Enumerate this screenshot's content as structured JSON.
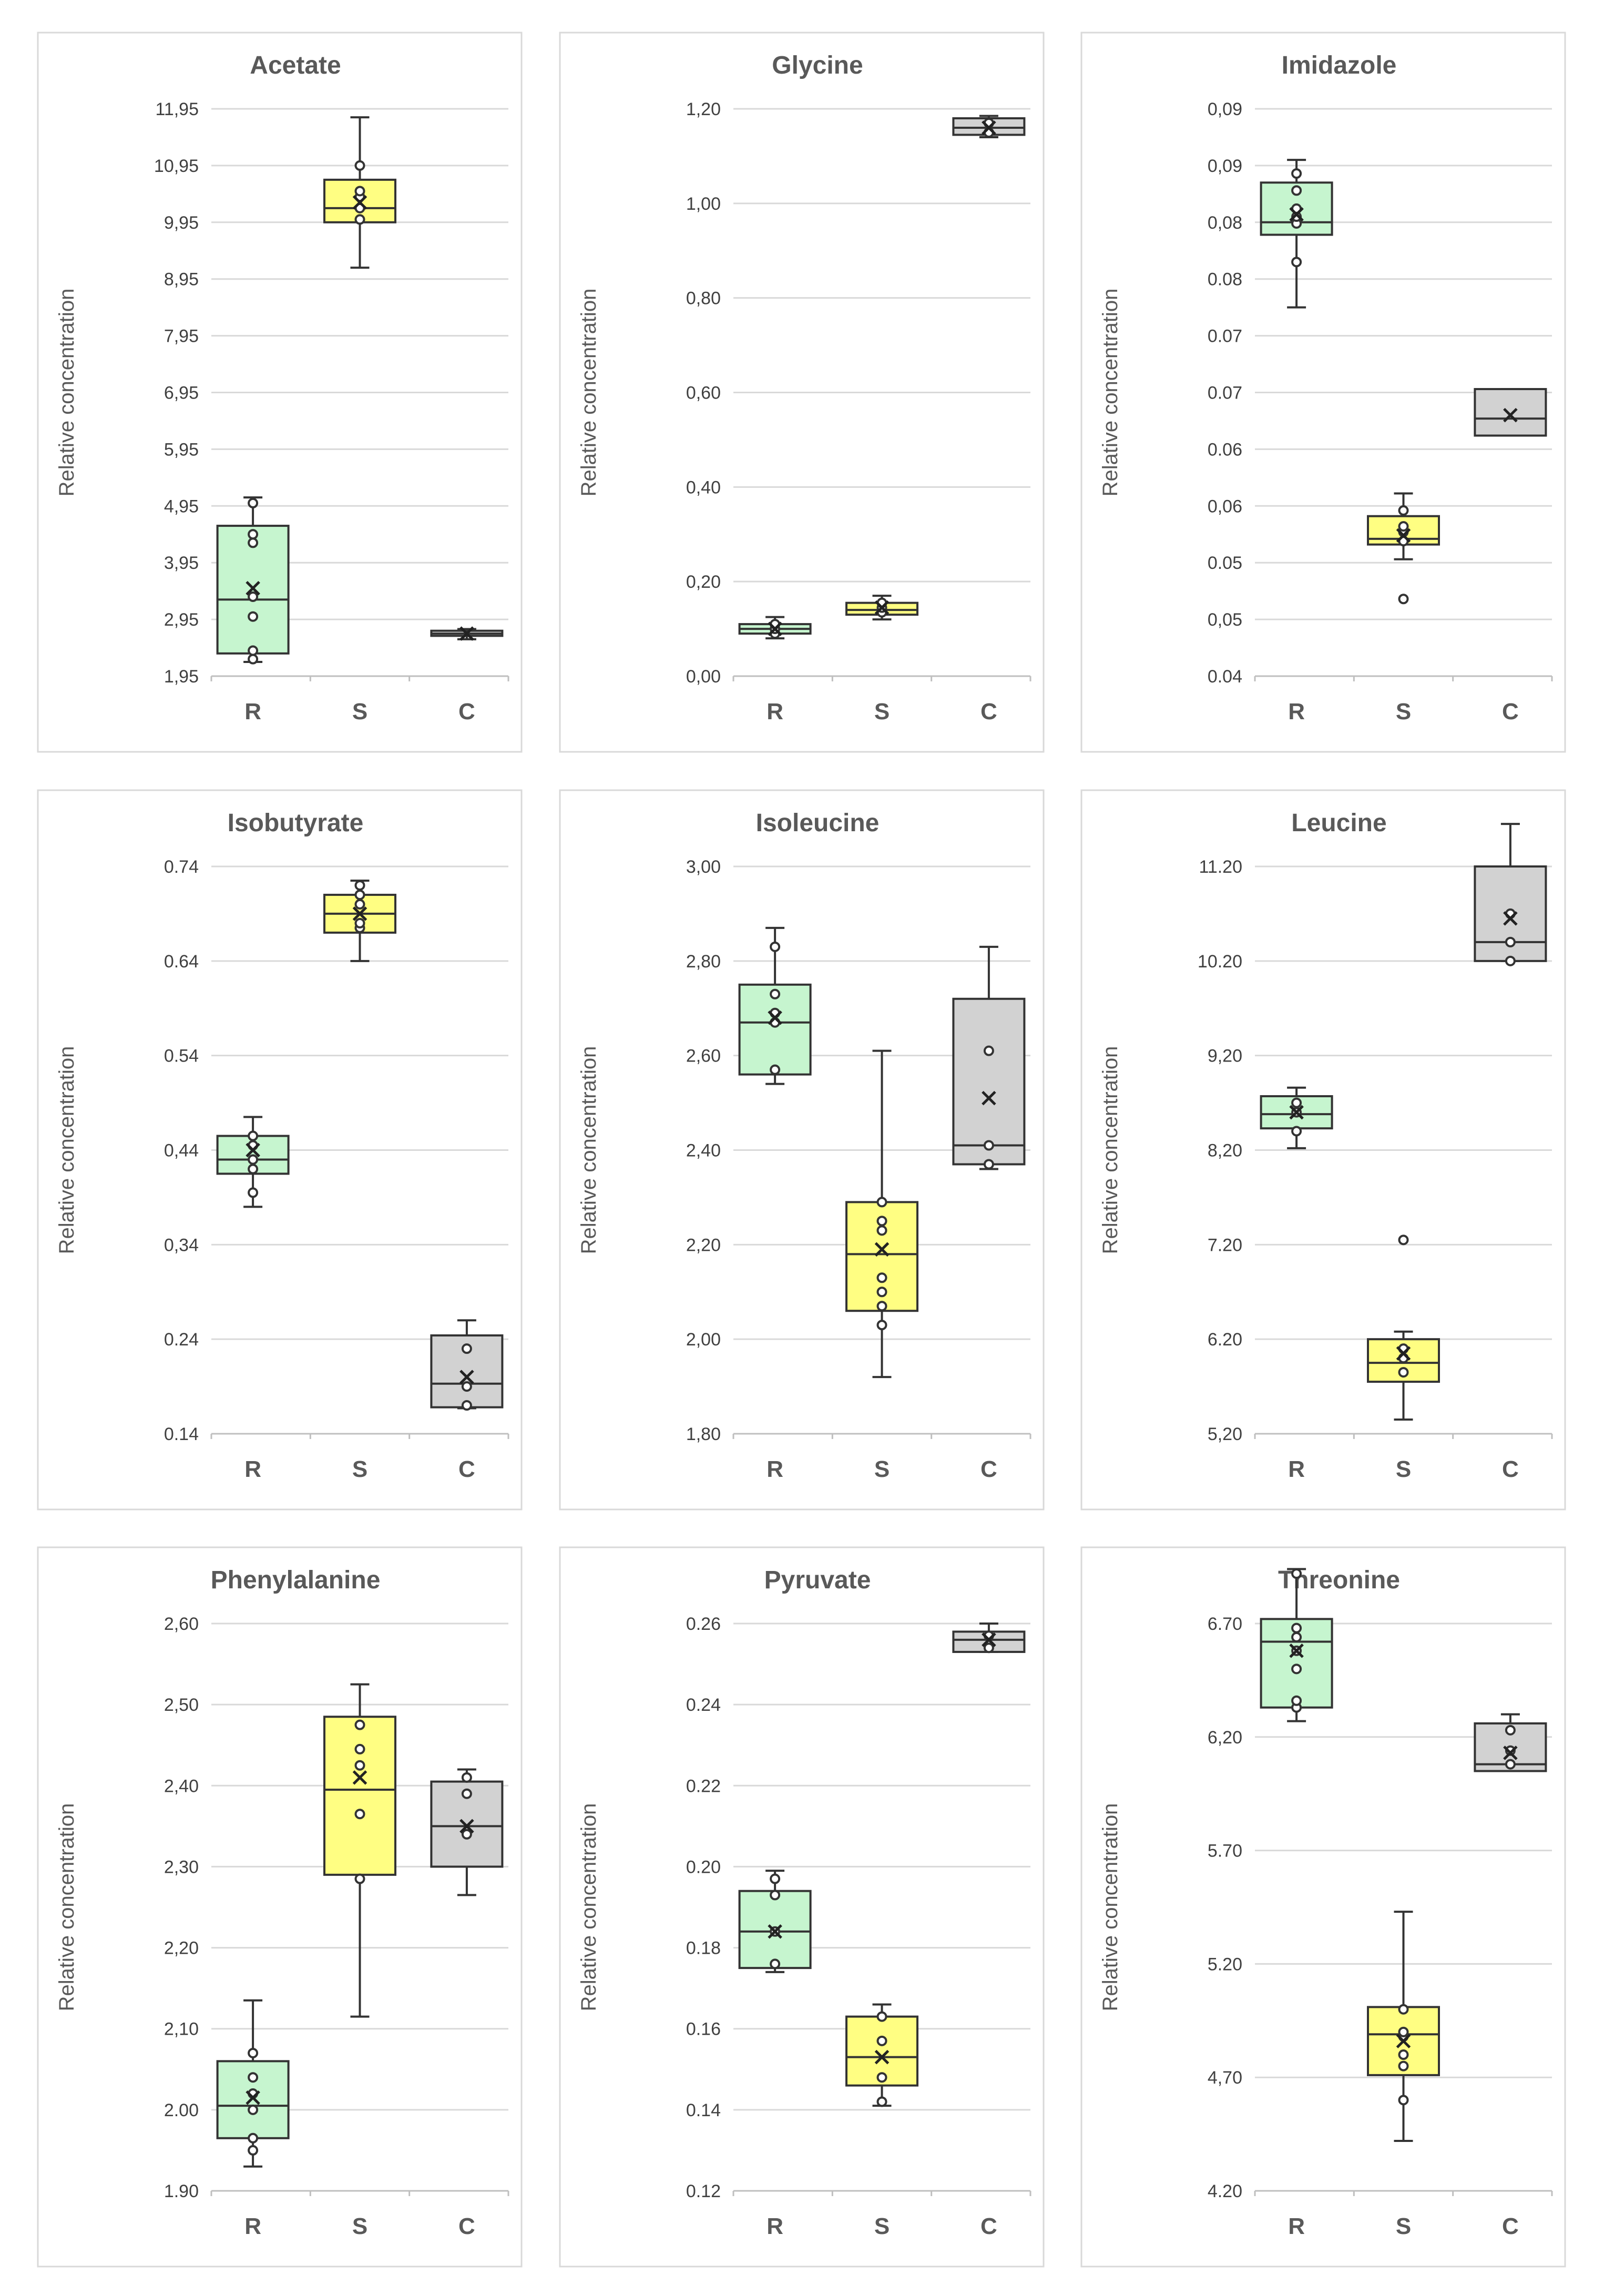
{
  "chart_data": [
    {
      "type": "box",
      "title": "Acetate",
      "ylabel": "Relative concentration",
      "ylim": [
        1.95,
        11.95
      ],
      "yticks": [
        "1,95",
        "2,95",
        "3,95",
        "4,95",
        "5,95",
        "6,95",
        "7,95",
        "8,95",
        "9,95",
        "10,95",
        "11,95"
      ],
      "categories": [
        "R",
        "S",
        "C"
      ],
      "boxes": [
        {
          "name": "R",
          "min": 2.2,
          "q1": 2.35,
          "median": 3.3,
          "q3": 4.6,
          "max": 5.1,
          "mean": 3.5,
          "points": [
            2.25,
            2.4,
            3.0,
            3.35,
            4.3,
            4.45,
            5.0
          ],
          "color": "#c6f5cf"
        },
        {
          "name": "S",
          "min": 9.15,
          "q1": 9.95,
          "median": 10.2,
          "q3": 10.7,
          "max": 11.8,
          "mean": 10.3,
          "points": [
            10.0,
            10.2,
            10.4,
            10.5,
            10.95
          ],
          "color": "#fffe82"
        },
        {
          "name": "C",
          "min": 2.6,
          "q1": 2.66,
          "median": 2.7,
          "q3": 2.75,
          "max": 2.78,
          "mean": 2.7,
          "points": [],
          "color": "#d2d2d2"
        }
      ]
    },
    {
      "type": "box",
      "title": "Glycine",
      "ylabel": "Relative concentration",
      "ylim": [
        0,
        1.2
      ],
      "yticks": [
        "0,00",
        "0,20",
        "0,40",
        "0,60",
        "0,80",
        "1,00",
        "1,20"
      ],
      "categories": [
        "R",
        "S",
        "C"
      ],
      "boxes": [
        {
          "name": "R",
          "min": 0.08,
          "q1": 0.09,
          "median": 0.1,
          "q3": 0.11,
          "max": 0.125,
          "mean": 0.1,
          "points": [
            0.09,
            0.1,
            0.11
          ],
          "color": "#c6f5cf"
        },
        {
          "name": "S",
          "min": 0.12,
          "q1": 0.13,
          "median": 0.14,
          "q3": 0.155,
          "max": 0.17,
          "mean": 0.145,
          "points": [
            0.135,
            0.145,
            0.155
          ],
          "color": "#fffe82"
        },
        {
          "name": "C",
          "min": 1.14,
          "q1": 1.145,
          "median": 1.16,
          "q3": 1.18,
          "max": 1.185,
          "mean": 1.16,
          "points": [
            1.15,
            1.17
          ],
          "color": "#d2d2d2"
        }
      ]
    },
    {
      "type": "box",
      "title": "Imidazole",
      "ylabel": "Relative concentration",
      "ylim": [
        0.04,
        0.09
      ],
      "yticks": [
        "0.04",
        "0,05",
        "0.05",
        "0,06",
        "0.06",
        "0.07",
        "0.07",
        "0.08",
        "0,08",
        "0,09",
        "0,09"
      ],
      "categories": [
        "R",
        "S",
        "C"
      ],
      "boxes": [
        {
          "name": "R",
          "min": 0.0725,
          "q1": 0.0789,
          "median": 0.08,
          "q3": 0.0835,
          "max": 0.0855,
          "mean": 0.0807,
          "points": [
            0.0765,
            0.0799,
            0.0805,
            0.0812,
            0.0828,
            0.0843
          ],
          "color": "#c6f5cf"
        },
        {
          "name": "S",
          "min": 0.0503,
          "q1": 0.0516,
          "median": 0.0521,
          "q3": 0.0541,
          "max": 0.0561,
          "mean": 0.0524,
          "points": [
            0.0519,
            0.0527,
            0.0532,
            0.0546,
            0.0468
          ],
          "color": "#fffe82"
        },
        {
          "name": "C",
          "min": 0.0612,
          "q1": 0.0612,
          "median": 0.0627,
          "q3": 0.0653,
          "max": 0.0653,
          "mean": 0.063,
          "points": [],
          "color": "#d2d2d2"
        }
      ]
    },
    {
      "type": "box",
      "title": "Isobutyrate",
      "ylabel": "Relative concentration",
      "ylim": [
        0.14,
        0.74
      ],
      "yticks": [
        "0.14",
        "0.24",
        "0,34",
        "0,44",
        "0.54",
        "0.64",
        "0.74"
      ],
      "categories": [
        "R",
        "S",
        "C"
      ],
      "boxes": [
        {
          "name": "R",
          "min": 0.38,
          "q1": 0.415,
          "median": 0.43,
          "q3": 0.455,
          "max": 0.475,
          "mean": 0.44,
          "points": [
            0.395,
            0.42,
            0.43,
            0.445,
            0.455
          ],
          "color": "#c6f5cf"
        },
        {
          "name": "S",
          "min": 0.64,
          "q1": 0.67,
          "median": 0.69,
          "q3": 0.71,
          "max": 0.725,
          "mean": 0.69,
          "points": [
            0.675,
            0.68,
            0.7,
            0.71,
            0.72
          ],
          "color": "#fffe82"
        },
        {
          "name": "C",
          "min": 0.167,
          "q1": 0.168,
          "median": 0.193,
          "q3": 0.244,
          "max": 0.26,
          "mean": 0.2,
          "points": [
            0.17,
            0.19,
            0.23
          ],
          "color": "#d2d2d2"
        }
      ]
    },
    {
      "type": "box",
      "title": "Isoleucine",
      "ylabel": "Relative concentration",
      "ylim": [
        1.8,
        3.0
      ],
      "yticks": [
        "1,80",
        "2,00",
        "2,20",
        "2,40",
        "2,60",
        "2,80",
        "3,00"
      ],
      "categories": [
        "R",
        "S",
        "C"
      ],
      "boxes": [
        {
          "name": "R",
          "min": 2.54,
          "q1": 2.56,
          "median": 2.67,
          "q3": 2.75,
          "max": 2.87,
          "mean": 2.68,
          "points": [
            2.57,
            2.67,
            2.69,
            2.73,
            2.83
          ],
          "color": "#c6f5cf"
        },
        {
          "name": "S",
          "min": 1.92,
          "q1": 2.06,
          "median": 2.18,
          "q3": 2.29,
          "max": 2.61,
          "mean": 2.19,
          "points": [
            2.03,
            2.07,
            2.1,
            2.13,
            2.23,
            2.25,
            2.29
          ],
          "color": "#fffe82"
        },
        {
          "name": "C",
          "min": 2.36,
          "q1": 2.37,
          "median": 2.41,
          "q3": 2.72,
          "max": 2.83,
          "mean": 2.51,
          "points": [
            2.37,
            2.41,
            2.61
          ],
          "color": "#d2d2d2"
        }
      ]
    },
    {
      "type": "box",
      "title": "Leucine",
      "ylabel": "Relative concentration",
      "ylim": [
        5.2,
        11.2
      ],
      "yticks": [
        "5,20",
        "6.20",
        "7.20",
        "8,20",
        "9,20",
        "10.20",
        "11.20"
      ],
      "categories": [
        "R",
        "S",
        "C"
      ],
      "boxes": [
        {
          "name": "R",
          "min": 8.22,
          "q1": 8.43,
          "median": 8.58,
          "q3": 8.77,
          "max": 8.86,
          "mean": 8.6,
          "points": [
            8.4,
            8.6,
            8.7
          ],
          "color": "#c6f5cf"
        },
        {
          "name": "S",
          "min": 5.35,
          "q1": 5.75,
          "median": 5.95,
          "q3": 6.2,
          "max": 6.28,
          "mean": 6.05,
          "points": [
            5.85,
            6.0,
            6.1,
            7.25
          ],
          "color": "#fffe82"
        },
        {
          "name": "C",
          "min": 10.2,
          "q1": 10.2,
          "median": 10.4,
          "q3": 11.2,
          "max": 11.65,
          "mean": 10.65,
          "points": [
            10.2,
            10.4,
            10.7
          ],
          "color": "#d2d2d2"
        }
      ]
    },
    {
      "type": "box",
      "title": "Phenylalanine",
      "ylabel": "Relative concentration",
      "ylim": [
        1.9,
        2.6
      ],
      "yticks": [
        "1.90",
        "2.00",
        "2,10",
        "2,20",
        "2,30",
        "2,40",
        "2,50",
        "2,60"
      ],
      "categories": [
        "R",
        "S",
        "C"
      ],
      "boxes": [
        {
          "name": "R",
          "min": 1.93,
          "q1": 1.965,
          "median": 2.005,
          "q3": 2.06,
          "max": 2.135,
          "mean": 2.015,
          "points": [
            1.95,
            1.965,
            2.0,
            2.02,
            2.04,
            2.07
          ],
          "color": "#c6f5cf"
        },
        {
          "name": "S",
          "min": 2.115,
          "q1": 2.29,
          "median": 2.395,
          "q3": 2.485,
          "max": 2.525,
          "mean": 2.41,
          "points": [
            2.285,
            2.365,
            2.425,
            2.445,
            2.475
          ],
          "color": "#fffe82"
        },
        {
          "name": "C",
          "min": 2.265,
          "q1": 2.3,
          "median": 2.35,
          "q3": 2.405,
          "max": 2.42,
          "mean": 2.35,
          "points": [
            2.34,
            2.39,
            2.41
          ],
          "color": "#d2d2d2"
        }
      ]
    },
    {
      "type": "box",
      "title": "Pyruvate",
      "ylabel": "Relative concentration",
      "ylim": [
        0.12,
        0.26
      ],
      "yticks": [
        "0.12",
        "0.14",
        "0.16",
        "0.18",
        "0.20",
        "0.22",
        "0.24",
        "0.26"
      ],
      "categories": [
        "R",
        "S",
        "C"
      ],
      "boxes": [
        {
          "name": "R",
          "min": 0.174,
          "q1": 0.175,
          "median": 0.184,
          "q3": 0.194,
          "max": 0.199,
          "mean": 0.184,
          "points": [
            0.176,
            0.184,
            0.193,
            0.197
          ],
          "color": "#c6f5cf"
        },
        {
          "name": "S",
          "min": 0.141,
          "q1": 0.146,
          "median": 0.153,
          "q3": 0.163,
          "max": 0.166,
          "mean": 0.153,
          "points": [
            0.142,
            0.148,
            0.157,
            0.163
          ],
          "color": "#fffe82"
        },
        {
          "name": "C",
          "min": 0.253,
          "q1": 0.253,
          "median": 0.256,
          "q3": 0.258,
          "max": 0.26,
          "mean": 0.256,
          "points": [
            0.254,
            0.257
          ],
          "color": "#d2d2d2"
        }
      ]
    },
    {
      "type": "box",
      "title": "Threonine",
      "ylabel": "Relative concentration",
      "ylim": [
        4.2,
        6.7
      ],
      "yticks": [
        "4.20",
        "4,70",
        "5.20",
        "5.70",
        "6,20",
        "6.70"
      ],
      "categories": [
        "R",
        "S",
        "C"
      ],
      "boxes": [
        {
          "name": "R",
          "min": 6.27,
          "q1": 6.33,
          "median": 6.62,
          "q3": 6.72,
          "max": 6.94,
          "mean": 6.58,
          "points": [
            6.33,
            6.36,
            6.5,
            6.58,
            6.64,
            6.68,
            6.92
          ],
          "color": "#c6f5cf"
        },
        {
          "name": "S",
          "min": 4.42,
          "q1": 4.71,
          "median": 4.89,
          "q3": 5.01,
          "max": 5.43,
          "mean": 4.86,
          "points": [
            4.6,
            4.75,
            4.8,
            4.88,
            4.9,
            5.0
          ],
          "color": "#fffe82"
        },
        {
          "name": "C",
          "min": 6.05,
          "q1": 6.05,
          "median": 6.08,
          "q3": 6.26,
          "max": 6.3,
          "mean": 6.13,
          "points": [
            6.08,
            6.14,
            6.23
          ],
          "color": "#d2d2d2"
        }
      ]
    }
  ]
}
